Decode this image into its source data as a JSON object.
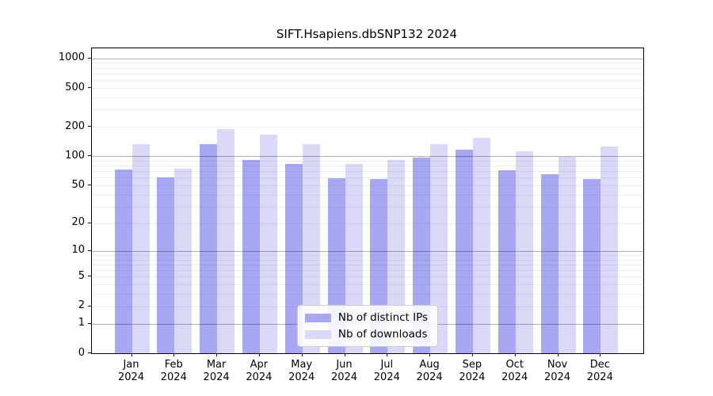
{
  "chart_data": {
    "type": "bar",
    "title": "SIFT.Hsapiens.dbSNP132 2024",
    "categories": [
      "Jan 2024",
      "Feb 2024",
      "Mar 2024",
      "Apr 2024",
      "May 2024",
      "Jun 2024",
      "Jul 2024",
      "Aug 2024",
      "Sep 2024",
      "Oct 2024",
      "Nov 2024",
      "Dec 2024"
    ],
    "series": [
      {
        "name": "Nb of distinct IPs",
        "color": "#a7a7f2",
        "values": [
          73,
          61,
          134,
          92,
          84,
          59,
          58,
          97,
          117,
          72,
          65,
          58
        ]
      },
      {
        "name": "Nb of downloads",
        "color": "#d9d9f7",
        "values": [
          133,
          75,
          190,
          167,
          133,
          83,
          92,
          133,
          154,
          113,
          98,
          126
        ]
      }
    ],
    "xlabel": "",
    "ylabel": "",
    "yticks": [
      0,
      1,
      2,
      5,
      10,
      20,
      50,
      100,
      200,
      500,
      1000
    ],
    "scale": "log1p",
    "ylim": [
      0,
      1265
    ],
    "grid": "horizontal",
    "legend_position": "bottom-center"
  }
}
